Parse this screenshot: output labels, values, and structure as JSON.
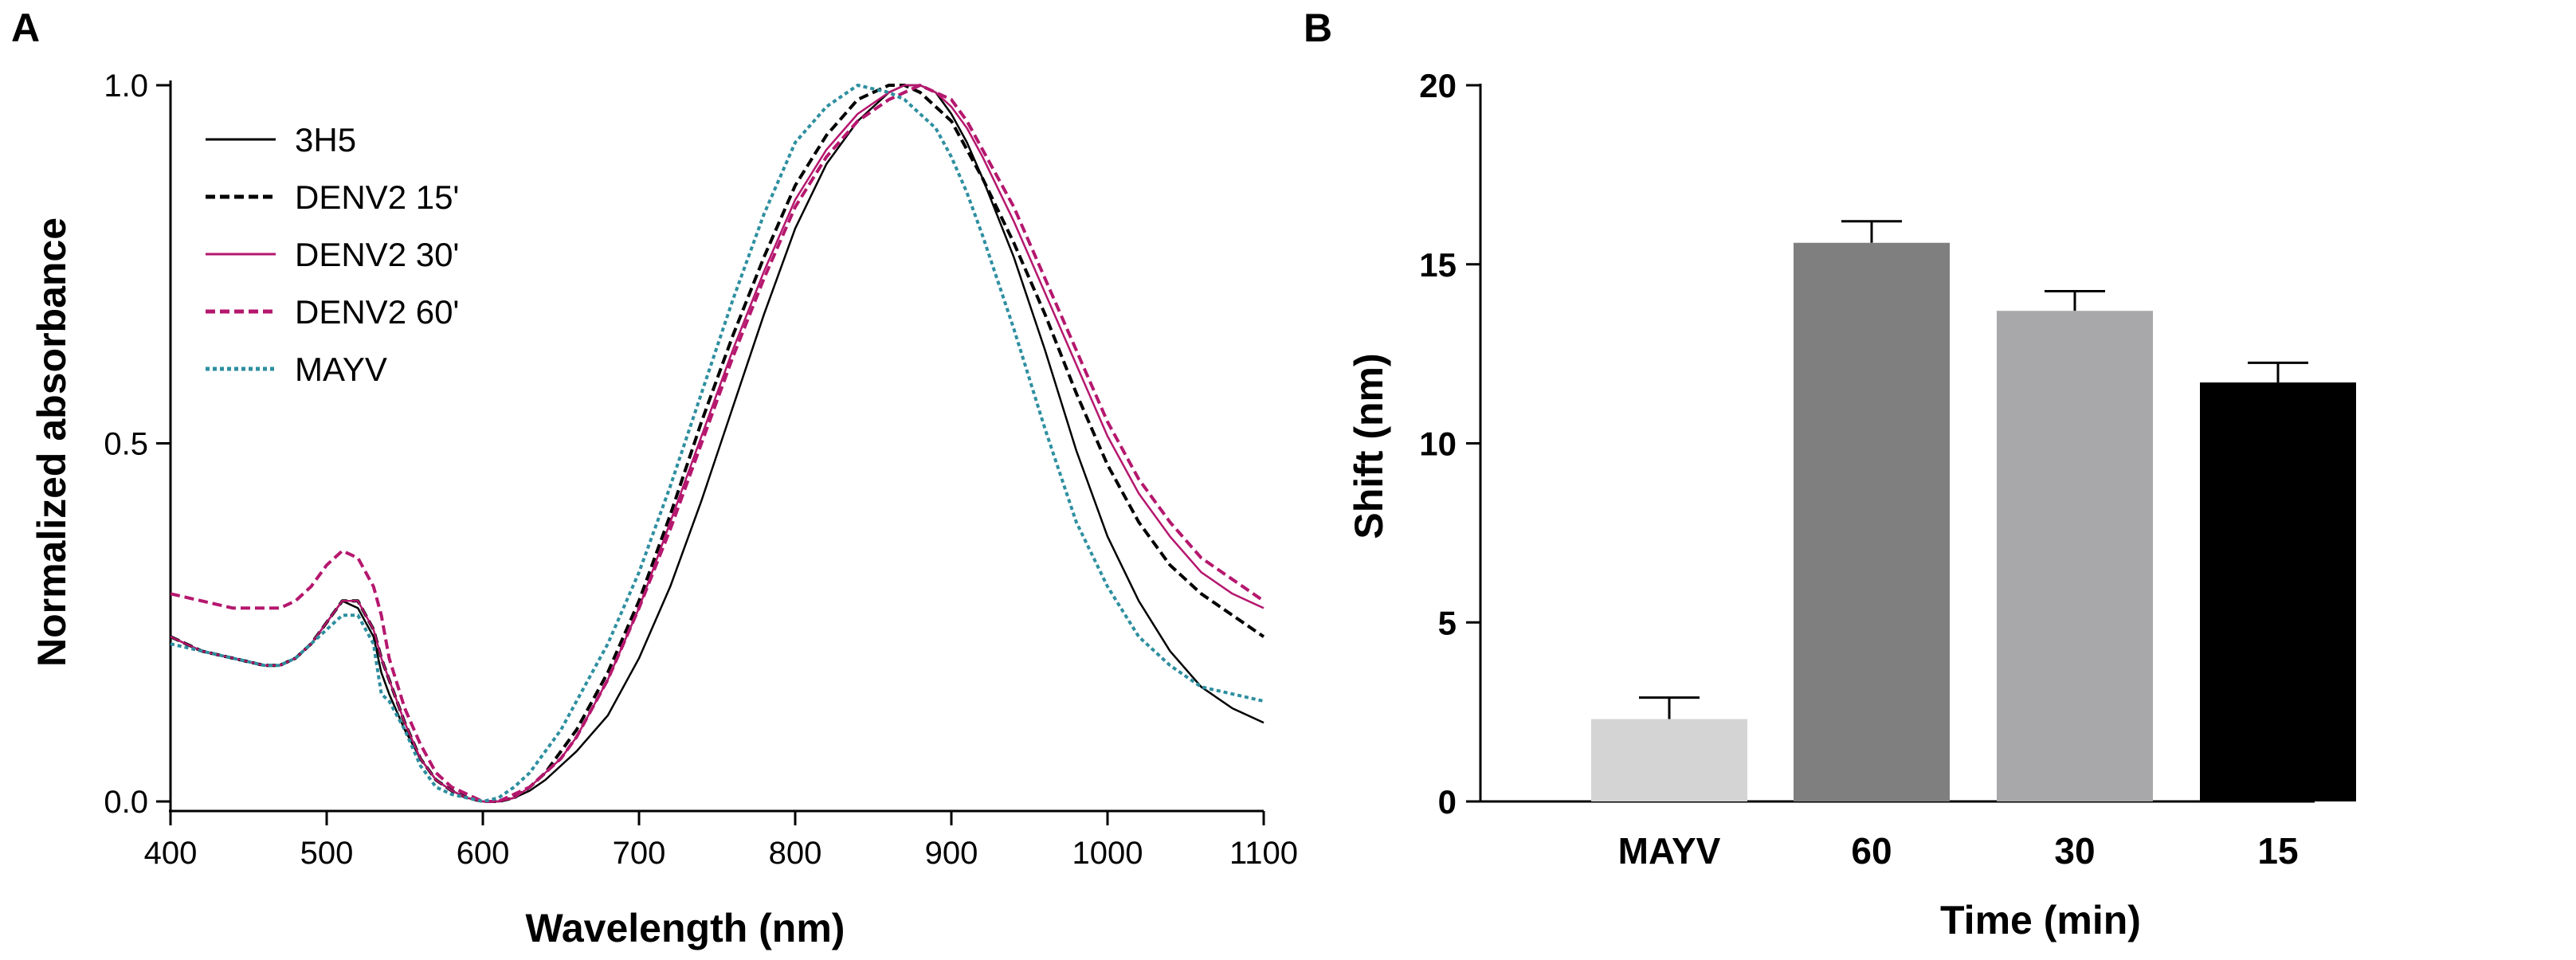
{
  "panels": {
    "a": {
      "label": "A"
    },
    "b": {
      "label": "B"
    }
  },
  "colors": {
    "axis": "#000000",
    "black_series": "#000000",
    "magenta_series": "#b5176e",
    "teal_series": "#2e8fa0",
    "bar_mayv": "#d4d4d4",
    "bar_60": "#7f7f7f",
    "bar_30": "#a8a8ab",
    "bar_15": "#000000"
  },
  "chart_data": [
    {
      "type": "line",
      "panel": "A",
      "title": "",
      "xlabel": "Wavelength (nm)",
      "ylabel": "Normalized absorbance",
      "xlim": [
        400,
        1100
      ],
      "ylim": [
        0.0,
        1.0
      ],
      "xticks": [
        400,
        500,
        600,
        700,
        800,
        900,
        1000,
        1100
      ],
      "xtick_labels": [
        "400",
        "500",
        "600",
        "700",
        "800",
        "900",
        "1000",
        "1100"
      ],
      "yticks": [
        0.0,
        0.5,
        1.0
      ],
      "ytick_labels": [
        "0.0",
        "0.5",
        "1.0"
      ],
      "legend_position": "top-left",
      "grid": false,
      "x": [
        400,
        420,
        440,
        460,
        470,
        480,
        490,
        500,
        510,
        520,
        530,
        535,
        540,
        550,
        560,
        570,
        580,
        590,
        600,
        610,
        620,
        630,
        640,
        650,
        660,
        680,
        700,
        720,
        740,
        760,
        780,
        800,
        820,
        840,
        860,
        870,
        880,
        890,
        900,
        910,
        920,
        940,
        960,
        980,
        1000,
        1020,
        1040,
        1060,
        1080,
        1100
      ],
      "series": [
        {
          "name": "3H5",
          "style": "solid",
          "color": "black_series",
          "values": [
            0.23,
            0.21,
            0.2,
            0.19,
            0.19,
            0.2,
            0.22,
            0.25,
            0.28,
            0.27,
            0.23,
            0.18,
            0.15,
            0.1,
            0.06,
            0.03,
            0.015,
            0.005,
            0.0,
            0.0,
            0.005,
            0.015,
            0.03,
            0.05,
            0.07,
            0.12,
            0.2,
            0.3,
            0.42,
            0.55,
            0.68,
            0.8,
            0.89,
            0.95,
            0.99,
            1.0,
            1.0,
            0.99,
            0.96,
            0.92,
            0.87,
            0.76,
            0.63,
            0.49,
            0.37,
            0.28,
            0.21,
            0.16,
            0.13,
            0.11
          ]
        },
        {
          "name": "DENV2 15'",
          "style": "dashed",
          "color": "black_series",
          "values": [
            0.23,
            0.21,
            0.2,
            0.19,
            0.19,
            0.2,
            0.22,
            0.25,
            0.28,
            0.28,
            0.24,
            0.2,
            0.17,
            0.11,
            0.06,
            0.03,
            0.015,
            0.005,
            0.0,
            0.0,
            0.005,
            0.02,
            0.04,
            0.07,
            0.1,
            0.18,
            0.28,
            0.4,
            0.53,
            0.65,
            0.76,
            0.86,
            0.93,
            0.98,
            1.0,
            1.0,
            0.99,
            0.97,
            0.95,
            0.91,
            0.87,
            0.78,
            0.68,
            0.57,
            0.47,
            0.39,
            0.33,
            0.29,
            0.26,
            0.23
          ]
        },
        {
          "name": "DENV2 30'",
          "style": "solid",
          "color": "magenta_series",
          "values": [
            0.23,
            0.21,
            0.2,
            0.19,
            0.19,
            0.2,
            0.22,
            0.25,
            0.28,
            0.28,
            0.24,
            0.2,
            0.17,
            0.11,
            0.06,
            0.03,
            0.015,
            0.005,
            0.0,
            0.0,
            0.005,
            0.02,
            0.04,
            0.06,
            0.09,
            0.17,
            0.27,
            0.39,
            0.51,
            0.63,
            0.74,
            0.84,
            0.91,
            0.96,
            0.99,
            1.0,
            1.0,
            0.99,
            0.97,
            0.94,
            0.9,
            0.81,
            0.71,
            0.61,
            0.51,
            0.43,
            0.37,
            0.32,
            0.29,
            0.27
          ]
        },
        {
          "name": "DENV2 60'",
          "style": "dashed",
          "color": "magenta_series",
          "values": [
            0.29,
            0.28,
            0.27,
            0.27,
            0.27,
            0.28,
            0.3,
            0.33,
            0.35,
            0.34,
            0.3,
            0.26,
            0.2,
            0.13,
            0.08,
            0.04,
            0.02,
            0.01,
            0.0,
            0.0,
            0.01,
            0.02,
            0.04,
            0.06,
            0.09,
            0.17,
            0.27,
            0.38,
            0.5,
            0.62,
            0.73,
            0.83,
            0.9,
            0.95,
            0.98,
            0.99,
            1.0,
            0.99,
            0.98,
            0.95,
            0.91,
            0.83,
            0.73,
            0.63,
            0.53,
            0.45,
            0.39,
            0.34,
            0.31,
            0.28
          ]
        },
        {
          "name": "MAYV",
          "style": "dotted",
          "color": "teal_series",
          "values": [
            0.22,
            0.21,
            0.2,
            0.19,
            0.19,
            0.2,
            0.22,
            0.24,
            0.26,
            0.26,
            0.22,
            0.15,
            0.14,
            0.1,
            0.05,
            0.02,
            0.01,
            0.005,
            0.0,
            0.005,
            0.02,
            0.04,
            0.07,
            0.1,
            0.14,
            0.22,
            0.32,
            0.44,
            0.57,
            0.7,
            0.82,
            0.92,
            0.97,
            1.0,
            0.99,
            0.98,
            0.96,
            0.94,
            0.9,
            0.85,
            0.79,
            0.66,
            0.52,
            0.39,
            0.3,
            0.23,
            0.19,
            0.16,
            0.15,
            0.14
          ]
        }
      ]
    },
    {
      "type": "bar",
      "panel": "B",
      "title": "",
      "xlabel": "Time (min)",
      "ylabel": "Shift (nm)",
      "ylim": [
        0,
        20
      ],
      "yticks": [
        0,
        5,
        10,
        15,
        20
      ],
      "ytick_labels": [
        "0",
        "5",
        "10",
        "15",
        "20"
      ],
      "grid": false,
      "categories": [
        "MAYV",
        "60",
        "30",
        "15"
      ],
      "values": [
        2.3,
        15.6,
        13.7,
        11.7
      ],
      "errors": [
        0.6,
        0.6,
        0.55,
        0.55
      ],
      "bar_colors": [
        "bar_mayv",
        "bar_60",
        "bar_30",
        "bar_15"
      ]
    }
  ]
}
